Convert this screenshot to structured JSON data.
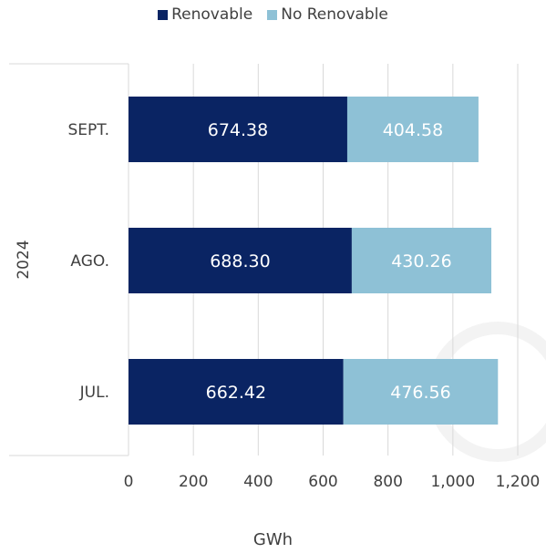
{
  "chart_data": {
    "type": "bar",
    "orientation": "horizontal",
    "stacked": true,
    "group_label": "2024",
    "categories": [
      "SEPT.",
      "AGO.",
      "JUL."
    ],
    "series": [
      {
        "name": "Renovable",
        "values": [
          674.38,
          688.3,
          662.42
        ],
        "labels": [
          "674.38",
          "688.30",
          "662.42"
        ],
        "color": "#0a2463"
      },
      {
        "name": "No Renovable",
        "values": [
          404.58,
          430.26,
          476.56
        ],
        "labels": [
          "404.58",
          "430.26",
          "476.56"
        ],
        "color": "#8ec1d6"
      }
    ],
    "xlim": [
      0,
      1200
    ],
    "xticks": [
      0,
      200,
      400,
      600,
      800,
      1000,
      1200
    ],
    "xtick_labels": [
      "0",
      "200",
      "400",
      "600",
      "800",
      "1,000",
      "1,200"
    ],
    "xlabel": "GWh",
    "ylabel": "",
    "grid": "vertical",
    "legend_position": "top-center"
  }
}
